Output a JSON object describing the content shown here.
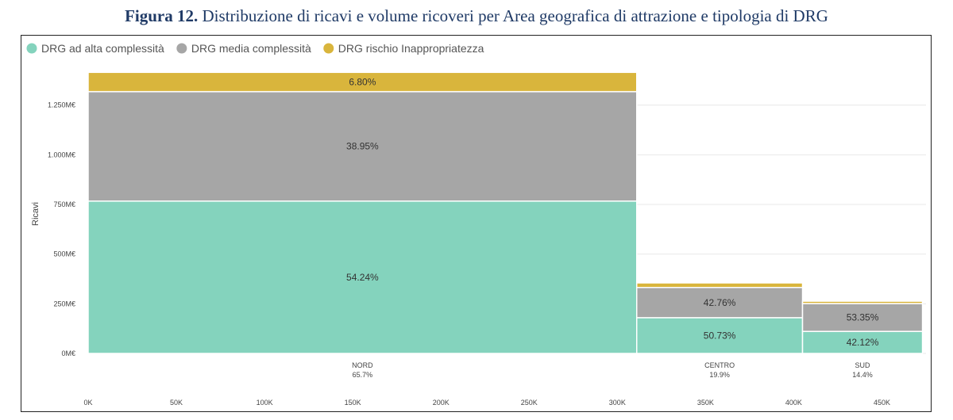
{
  "figure": {
    "title_bold": "Figura 12.",
    "title_rest": " Distribuzione di ricavi e volume ricoveri per Area geografica di attrazione e tipologia di DRG"
  },
  "chart_data": {
    "type": "bar",
    "subtype": "mekko",
    "ylabel": "Ricavi",
    "xlabel": "",
    "legend_position": "top-left",
    "grid": true,
    "ylim": [
      0,
      1500
    ],
    "y_ticks": [
      {
        "value": 0,
        "label": "0M€"
      },
      {
        "value": 250,
        "label": "250M€"
      },
      {
        "value": 500,
        "label": "500M€"
      },
      {
        "value": 750,
        "label": "750M€"
      },
      {
        "value": 1000,
        "label": "1.000M€"
      },
      {
        "value": 1250,
        "label": "1.250M€"
      }
    ],
    "xlim": [
      0,
      475
    ],
    "x_ticks": [
      {
        "value": 0,
        "label": "0K"
      },
      {
        "value": 50,
        "label": "50K"
      },
      {
        "value": 100,
        "label": "100K"
      },
      {
        "value": 150,
        "label": "150K"
      },
      {
        "value": 200,
        "label": "200K"
      },
      {
        "value": 250,
        "label": "250K"
      },
      {
        "value": 300,
        "label": "300K"
      },
      {
        "value": 350,
        "label": "350K"
      },
      {
        "value": 400,
        "label": "400K"
      },
      {
        "value": 450,
        "label": "450K"
      }
    ],
    "series": [
      {
        "name": "DRG ad alta complessità",
        "color": "#84d3bd"
      },
      {
        "name": "DRG media complessità",
        "color": "#a6a6a6"
      },
      {
        "name": "DRG rischio Inappropriatezza",
        "color": "#d9b53c"
      }
    ],
    "categories": [
      {
        "name": "NORD",
        "share_label": "65.7%",
        "x_start": 0,
        "x_end": 311,
        "total": 1415,
        "segments": [
          {
            "value": 767,
            "label": "54.24%"
          },
          {
            "value": 551,
            "label": "38.95%"
          },
          {
            "value": 97,
            "label": "6.80%"
          }
        ]
      },
      {
        "name": "CENTRO",
        "share_label": "19.9%",
        "x_start": 311,
        "x_end": 405,
        "total": 355,
        "segments": [
          {
            "value": 180,
            "label": "50.73%"
          },
          {
            "value": 152,
            "label": "42.76%"
          },
          {
            "value": 23,
            "label": ""
          }
        ]
      },
      {
        "name": "SUD",
        "share_label": "14.4%",
        "x_start": 405,
        "x_end": 473,
        "total": 263,
        "segments": [
          {
            "value": 111,
            "label": "42.12%"
          },
          {
            "value": 140,
            "label": "53.35%"
          },
          {
            "value": 12,
            "label": ""
          }
        ]
      }
    ]
  }
}
